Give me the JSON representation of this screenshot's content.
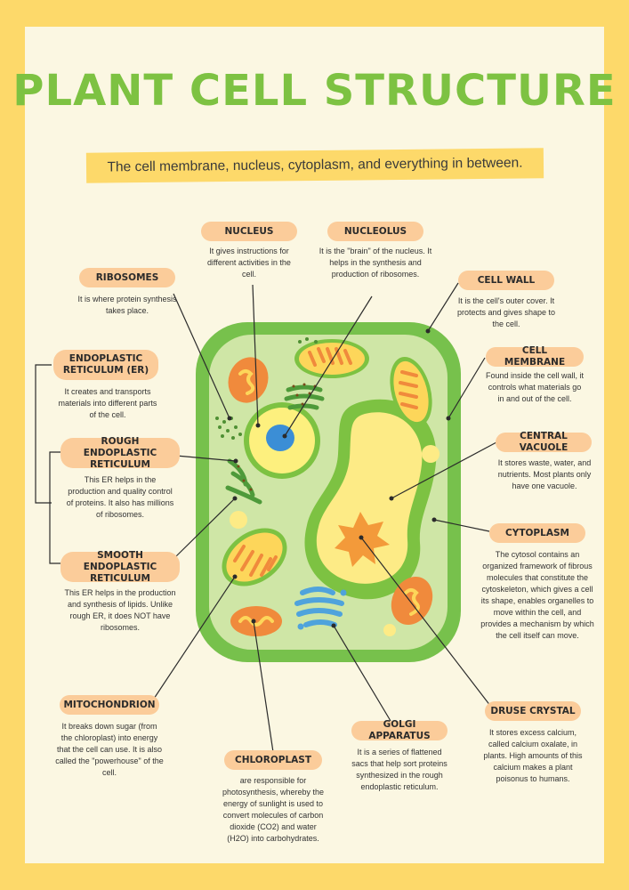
{
  "title": "PLANT CELL STRUCTURE",
  "subtitle": "The cell membrane, nucleus, cytoplasm, and everything in between.",
  "labels": {
    "nucleus": {
      "name": "NUCLEUS",
      "desc": "It gives instructions for different activities in the cell."
    },
    "nucleolus": {
      "name": "NUCLEOLUS",
      "desc": "It is the \"brain\" of the nucleus. It helps in the synthesis and production of ribosomes."
    },
    "ribosomes": {
      "name": "RIBOSOMES",
      "desc": "It is where protein synthesis takes place."
    },
    "cell_wall": {
      "name": "CELL WALL",
      "desc": "It is the cell's outer cover. It protects and gives shape to the cell."
    },
    "endoplastic_reticulum": {
      "name": "ENDOPLASTIC RETICULUM (ER)",
      "desc": "It creates and transports materials into different parts of the cell."
    },
    "cell_membrane": {
      "name": "CELL MEMBRANE",
      "desc": "Found inside the cell wall, it controls what materials go in and out of the cell."
    },
    "rough_er": {
      "name": "ROUGH ENDOPLASTIC RETICULUM",
      "desc": "This ER helps in the production and quality control of proteins. It also has millions of ribosomes."
    },
    "central_vacuole": {
      "name": "CENTRAL VACUOLE",
      "desc": "It stores waste, water, and nutrients. Most plants only have one vacuole."
    },
    "cytoplasm": {
      "name": "CYTOPLASM",
      "desc": "The cytosol contains an organized framework of fibrous molecules that constitute the cytoskeleton, which gives a cell its shape, enables organelles to move within the cell, and provides a mechanism by which the cell itself can move."
    },
    "smooth_er": {
      "name": "SMOOTH ENDOPLASTIC RETICULUM",
      "desc": "This ER helps in the production and synthesis of lipids. Unlike rough ER, it does NOT have ribosomes."
    },
    "mitochondrion": {
      "name": "MITOCHONDRION",
      "desc": "It breaks down sugar (from the chloroplast) into energy that the cell can use. It is also called the \"powerhouse\" of the cell."
    },
    "druse_crystal": {
      "name": "DRUSE CRYSTAL",
      "desc": "It stores excess calcium, called calcium oxalate, in plants. High amounts of this calcium makes a plant poisonus to humans."
    },
    "golgi_apparatus": {
      "name": "GOLGI APPARATUS",
      "desc": "It is a series of flattened sacs that help sort proteins synthesized in the rough endoplastic reticulum."
    },
    "chloroplast": {
      "name": "CHLOROPLAST",
      "desc": "are responsible for photosynthesis, whereby the energy of sunlight is used to convert molecules of carbon dioxide (CO2) and water (H2O) into carbohydrates."
    }
  },
  "colors": {
    "background_border": "#fdd96a",
    "poster": "#fbf7e2",
    "title": "#7dc242",
    "label_pill": "#fbcc9a",
    "cell_wall": "#77c14c",
    "cytoplasm": "#cfe6a6",
    "vacuole": "#fdeb86",
    "nucleus": "#fdf07e",
    "nucleolus": "#3b8ed6",
    "chloroplast": "#fdd65a",
    "mitochondrion": "#f08a3c",
    "golgi": "#4fa3dc",
    "druse_crystal": "#f39a3a"
  }
}
